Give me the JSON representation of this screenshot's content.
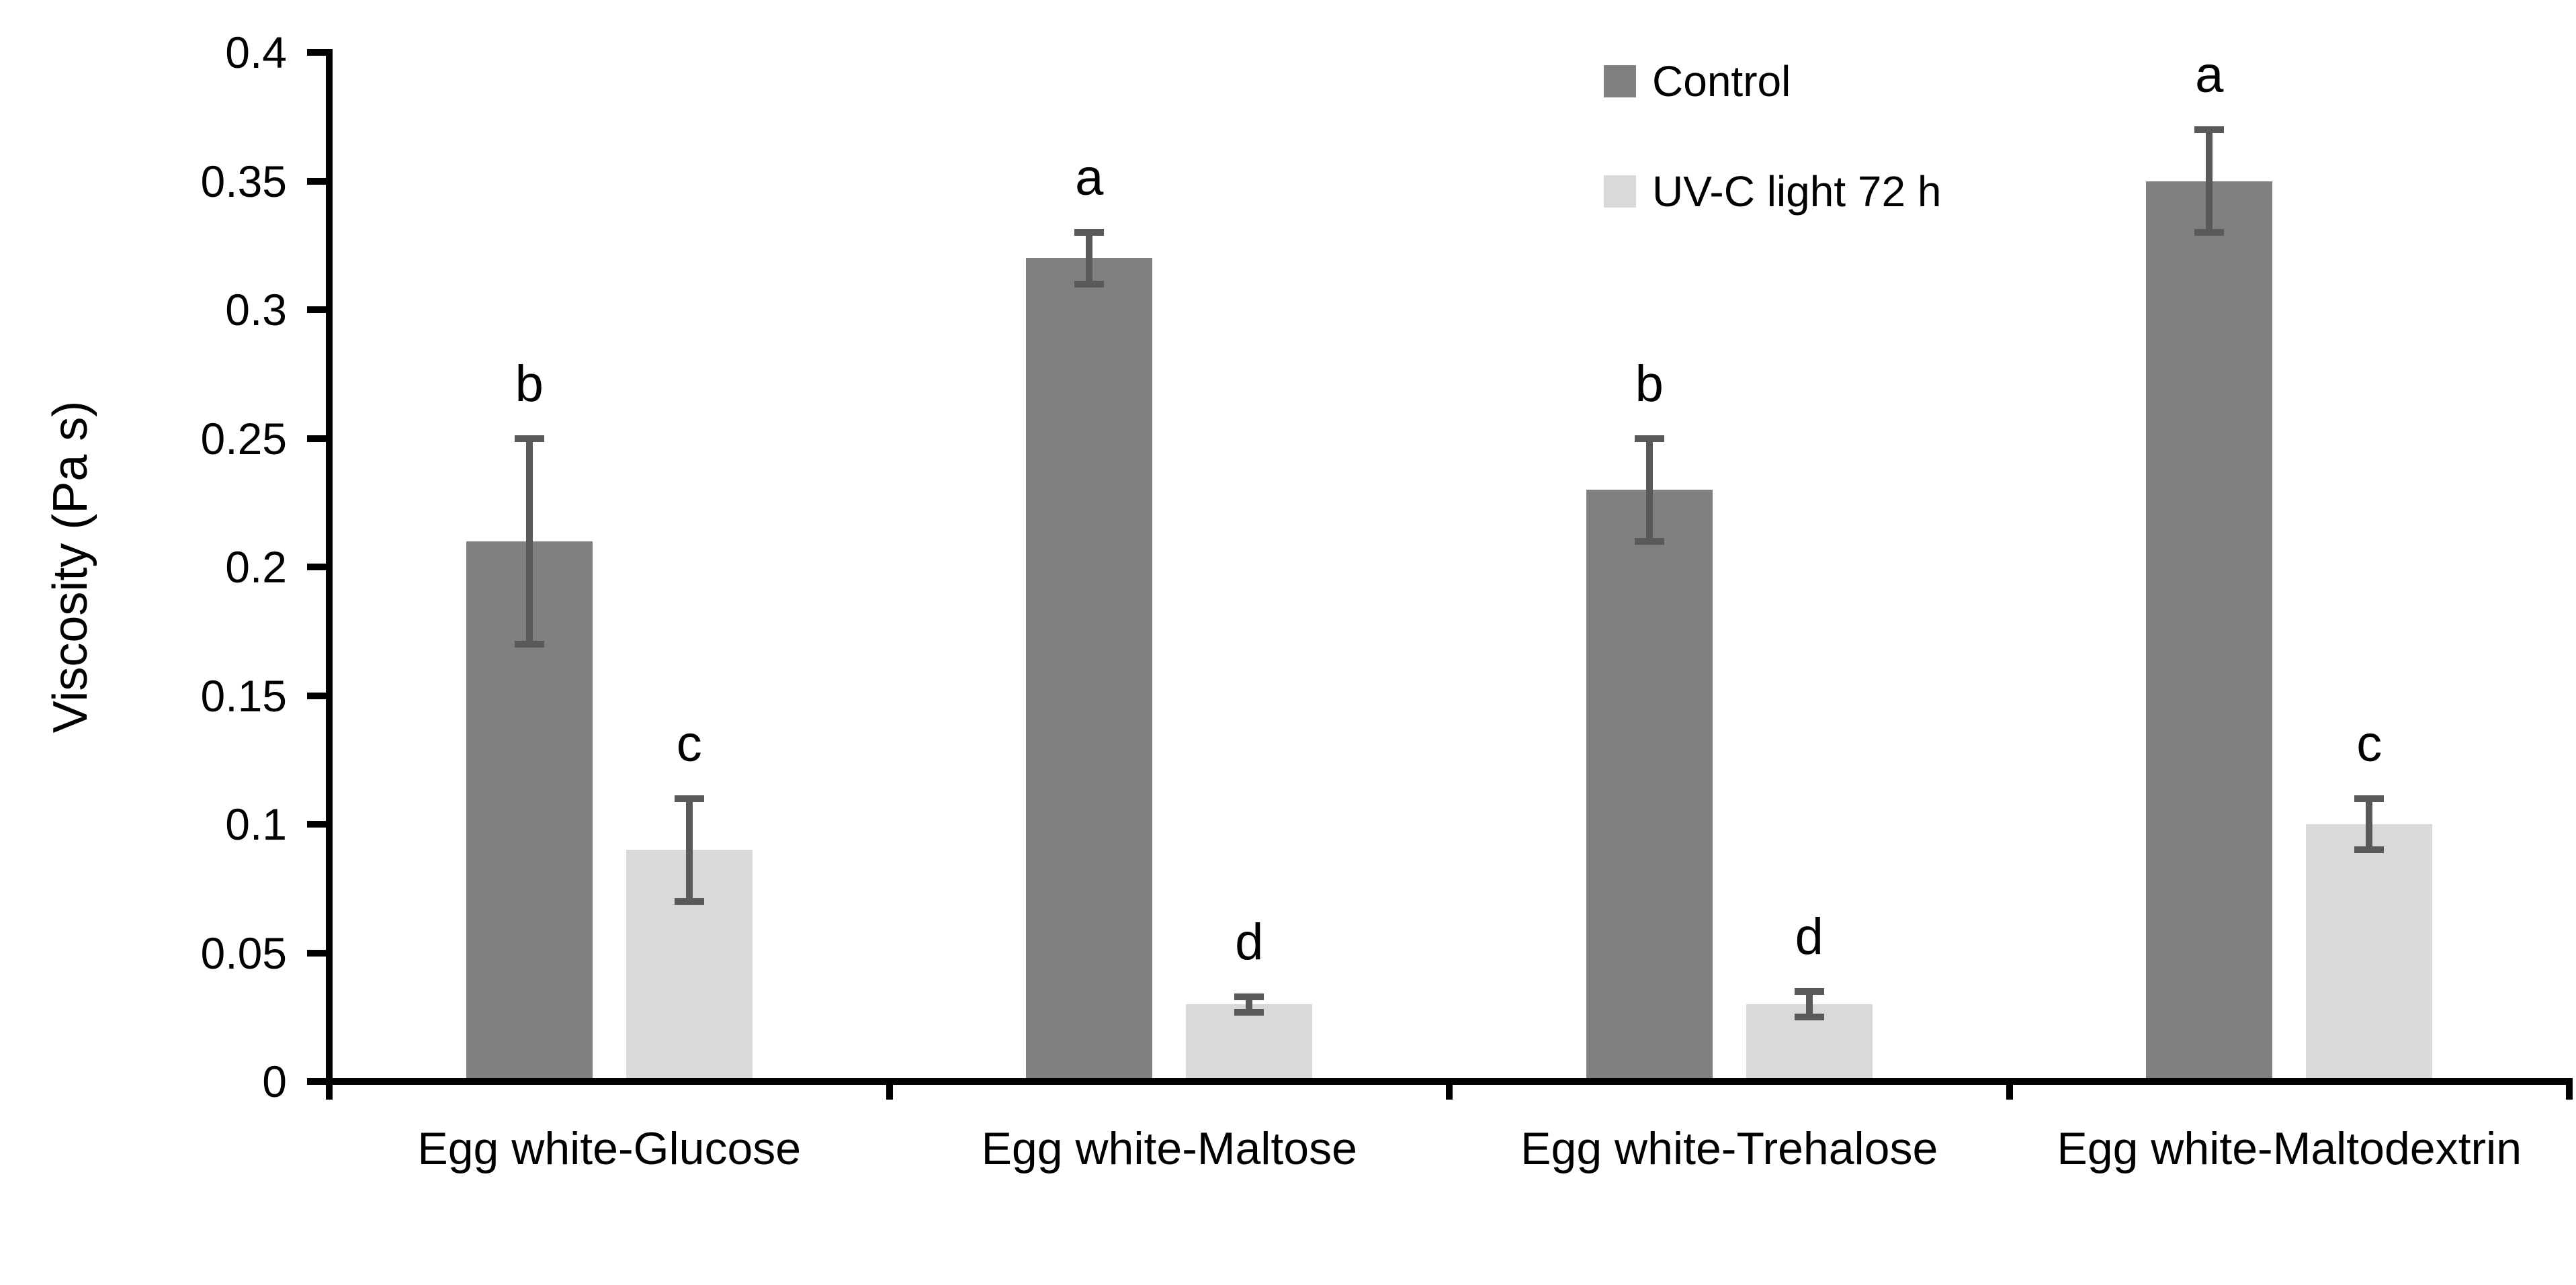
{
  "chart_data": {
    "type": "bar",
    "title": "",
    "xlabel": "",
    "ylabel": "Viscosity (Pa s)",
    "ylim": [
      0,
      0.4
    ],
    "ytick_values": [
      0,
      0.05,
      0.1,
      0.15,
      0.2,
      0.25,
      0.3,
      0.35,
      0.4
    ],
    "ytick_labels": [
      "0",
      "0.05",
      "0.1",
      "0.15",
      "0.2",
      "0.25",
      "0.3",
      "0.35",
      "0.4"
    ],
    "grid": "off",
    "legend_position": "top-center-inside",
    "categories": [
      "Egg white-Glucose",
      "Egg white-Maltose",
      "Egg white-Trehalose",
      "Egg white-Maltodextrin"
    ],
    "series": [
      {
        "name": "Control",
        "color": "#808080",
        "values": [
          0.21,
          0.32,
          0.23,
          0.35
        ],
        "error_minus": [
          0.04,
          0.01,
          0.02,
          0.02
        ],
        "error_plus": [
          0.04,
          0.01,
          0.02,
          0.02
        ],
        "letters": [
          "b",
          "a",
          "b",
          "a"
        ]
      },
      {
        "name": "UV-C light 72 h",
        "color": "#D9D9D9",
        "values": [
          0.09,
          0.03,
          0.03,
          0.1
        ],
        "error_minus": [
          0.02,
          0.003,
          0.005,
          0.01
        ],
        "error_plus": [
          0.02,
          0.003,
          0.005,
          0.01
        ],
        "letters": [
          "c",
          "d",
          "d",
          "c"
        ]
      }
    ],
    "error_bar_color": "#595959",
    "axis_color": "#000000",
    "text_color": "#000000"
  }
}
